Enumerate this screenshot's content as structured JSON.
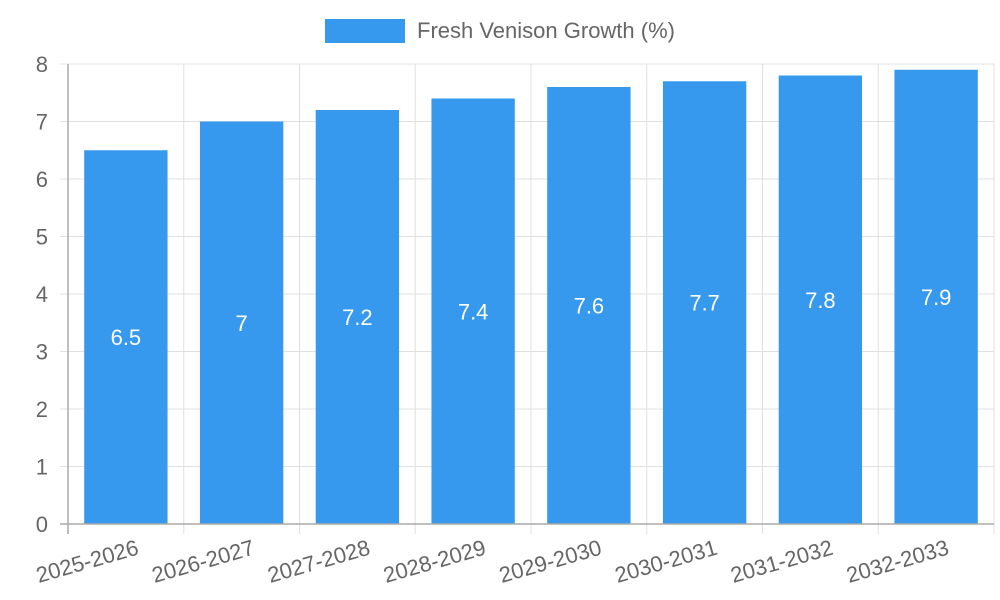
{
  "legend": {
    "label": "Fresh Venison Growth (%)",
    "color": "#3799ee"
  },
  "chart_data": {
    "type": "bar",
    "title": "",
    "xlabel": "",
    "ylabel": "",
    "categories": [
      "2025-2026",
      "2026-2027",
      "2027-2028",
      "2028-2029",
      "2029-2030",
      "2030-2031",
      "2031-2032",
      "2032-2033"
    ],
    "series": [
      {
        "name": "Fresh Venison Growth (%)",
        "values": [
          6.5,
          7,
          7.2,
          7.4,
          7.6,
          7.7,
          7.8,
          7.9
        ],
        "color": "#3799ee"
      }
    ],
    "data_labels": [
      "6.5",
      "7",
      "7.2",
      "7.4",
      "7.6",
      "7.7",
      "7.8",
      "7.9"
    ],
    "ylim": [
      0,
      8
    ],
    "yticks": [
      0,
      1,
      2,
      3,
      4,
      5,
      6,
      7,
      8
    ],
    "grid": true,
    "legend_position": "top"
  }
}
